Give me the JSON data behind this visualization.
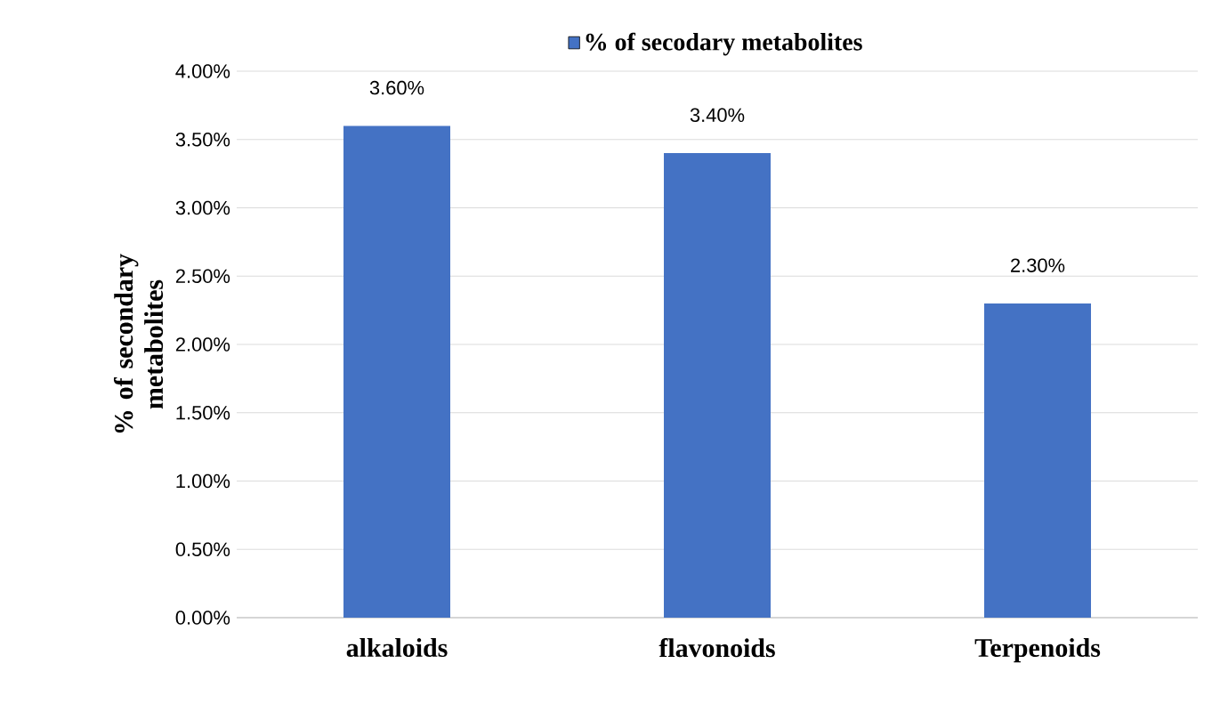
{
  "chart_data": {
    "type": "bar",
    "ylabel": "% of secondary metabolites",
    "categories": [
      "alkaloids",
      "flavonoids",
      "Terpenoids"
    ],
    "series": [
      {
        "name": "% of secodary metabolites",
        "color": "#4472c4",
        "values": [
          3.6,
          3.4,
          2.3
        ],
        "value_labels": [
          "3.60%",
          "3.40%",
          "2.30%"
        ]
      }
    ],
    "ylim": [
      0,
      4
    ],
    "yticks": [
      {
        "value": 0,
        "label": "0.00%"
      },
      {
        "value": 0.5,
        "label": "0.50%"
      },
      {
        "value": 1,
        "label": "1.00%"
      },
      {
        "value": 1.5,
        "label": "1.50%"
      },
      {
        "value": 2,
        "label": "2.00%"
      },
      {
        "value": 2.5,
        "label": "2.50%"
      },
      {
        "value": 3,
        "label": "3.00%"
      },
      {
        "value": 3.5,
        "label": "3.50%"
      },
      {
        "value": 4,
        "label": "4.00%"
      }
    ],
    "grid": "y",
    "legend": "top"
  }
}
